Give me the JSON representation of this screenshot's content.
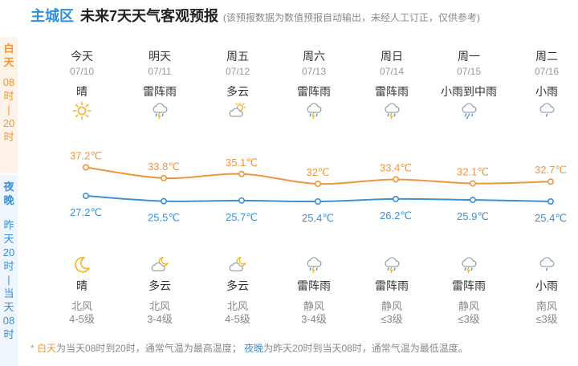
{
  "header": {
    "city": "主城区",
    "title": "未来7天天气客观预报",
    "note": "(该预报数据为数值预报自动输出，未经人工订正，仅供参考)"
  },
  "sidebar": {
    "day": [
      "白",
      "天",
      "08",
      "时",
      "|",
      "20",
      "时"
    ],
    "night": [
      "夜",
      "晚",
      "昨",
      "天",
      "20",
      "时",
      "|",
      "当",
      "天",
      "08",
      "时"
    ]
  },
  "days": [
    {
      "name": "今天",
      "date": "07/10",
      "day_weather": "晴",
      "day_icon": "sun-icon",
      "night_icon": "moon-icon",
      "night_weather": "晴",
      "wind_dir": "北风",
      "wind_level": "4-5级"
    },
    {
      "name": "明天",
      "date": "07/11",
      "day_weather": "雷阵雨",
      "day_icon": "thunderstorm-icon",
      "night_icon": "cloudy-night-icon",
      "night_weather": "多云",
      "wind_dir": "北风",
      "wind_level": "3-4级"
    },
    {
      "name": "周五",
      "date": "07/12",
      "day_weather": "多云",
      "day_icon": "partly-cloudy-icon",
      "night_icon": "cloudy-night-icon",
      "night_weather": "多云",
      "wind_dir": "北风",
      "wind_level": "4-5级"
    },
    {
      "name": "周六",
      "date": "07/13",
      "day_weather": "雷阵雨",
      "day_icon": "thunderstorm-icon",
      "night_icon": "thunderstorm-icon",
      "night_weather": "雷阵雨",
      "wind_dir": "静风",
      "wind_level": "3-4级"
    },
    {
      "name": "周日",
      "date": "07/14",
      "day_weather": "雷阵雨",
      "day_icon": "thunderstorm-icon",
      "night_icon": "thunderstorm-icon",
      "night_weather": "雷阵雨",
      "wind_dir": "静风",
      "wind_level": "≤3级"
    },
    {
      "name": "周一",
      "date": "07/15",
      "day_weather": "小雨到中雨",
      "day_icon": "rain-icon",
      "night_icon": "thunderstorm-icon",
      "night_weather": "雷阵雨",
      "wind_dir": "静风",
      "wind_level": "≤3级"
    },
    {
      "name": "周二",
      "date": "07/16",
      "day_weather": "小雨",
      "day_icon": "light-rain-icon",
      "night_icon": "light-rain-icon",
      "night_weather": "小雨",
      "wind_dir": "南风",
      "wind_level": "≤3级"
    }
  ],
  "chart_data": {
    "type": "line",
    "categories": [
      "07/10",
      "07/11",
      "07/12",
      "07/13",
      "07/14",
      "07/15",
      "07/16"
    ],
    "series": [
      {
        "values": [
          37.2,
          33.8,
          35.1,
          32,
          33.4,
          32.1,
          32.7
        ],
        "labels": [
          "37.2℃",
          "33.8℃",
          "35.1℃",
          "32℃",
          "33.4℃",
          "32.1℃",
          "32.7℃"
        ],
        "color": "#f0963c"
      },
      {
        "values": [
          27.2,
          25.5,
          25.7,
          25.4,
          26.2,
          25.9,
          25.4
        ],
        "labels": [
          "27.2℃",
          "25.5℃",
          "25.7℃",
          "25.4℃",
          "26.2℃",
          "25.9℃",
          "25.4℃"
        ],
        "color": "#3d8fd6"
      }
    ],
    "grid": false,
    "legend": "none"
  },
  "footer": {
    "star": "* ",
    "day_term": "白天",
    "day_text": "为当天08时到20时，通常气温为最高温度；",
    "night_term": "夜晚",
    "night_text": "为昨天20时到当天08时，通常气温为最低温度。"
  },
  "colors": {
    "accent": "#2f8fd6",
    "day": "#f0963c",
    "night": "#3d8fd6"
  }
}
